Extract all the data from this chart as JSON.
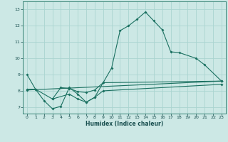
{
  "xlabel": "Humidex (Indice chaleur)",
  "xlim": [
    -0.5,
    23.5
  ],
  "ylim": [
    6.6,
    13.5
  ],
  "xticks": [
    0,
    1,
    2,
    3,
    4,
    5,
    6,
    7,
    8,
    9,
    10,
    11,
    12,
    13,
    14,
    15,
    16,
    17,
    18,
    19,
    20,
    21,
    22,
    23
  ],
  "yticks": [
    7,
    8,
    9,
    10,
    11,
    12,
    13
  ],
  "bg_color": "#cce8e5",
  "grid_color": "#aad4d0",
  "line_color": "#1a7060",
  "curve1_x": [
    0,
    1,
    2,
    3,
    4,
    5,
    6,
    7,
    8,
    9,
    10,
    11,
    12,
    13,
    14,
    15,
    16,
    17,
    18,
    20,
    21,
    23
  ],
  "curve1_y": [
    9.0,
    8.1,
    7.4,
    6.9,
    7.05,
    8.2,
    7.8,
    7.3,
    7.6,
    8.5,
    9.4,
    11.7,
    12.0,
    12.4,
    12.85,
    12.3,
    11.75,
    10.4,
    10.35,
    10.0,
    9.6,
    8.6
  ],
  "curve2_x": [
    0,
    1,
    3,
    4,
    5,
    6,
    7,
    8,
    9,
    23
  ],
  "curve2_y": [
    8.1,
    8.1,
    7.5,
    8.2,
    8.15,
    7.95,
    7.9,
    8.05,
    8.5,
    8.6
  ],
  "curve3_x": [
    3,
    5,
    6,
    7,
    8,
    9,
    23
  ],
  "curve3_y": [
    7.5,
    7.8,
    7.5,
    7.3,
    7.6,
    8.0,
    8.4
  ],
  "curve4_x": [
    0,
    23
  ],
  "curve4_y": [
    8.05,
    8.6
  ],
  "figsize": [
    3.2,
    2.0
  ],
  "dpi": 100
}
